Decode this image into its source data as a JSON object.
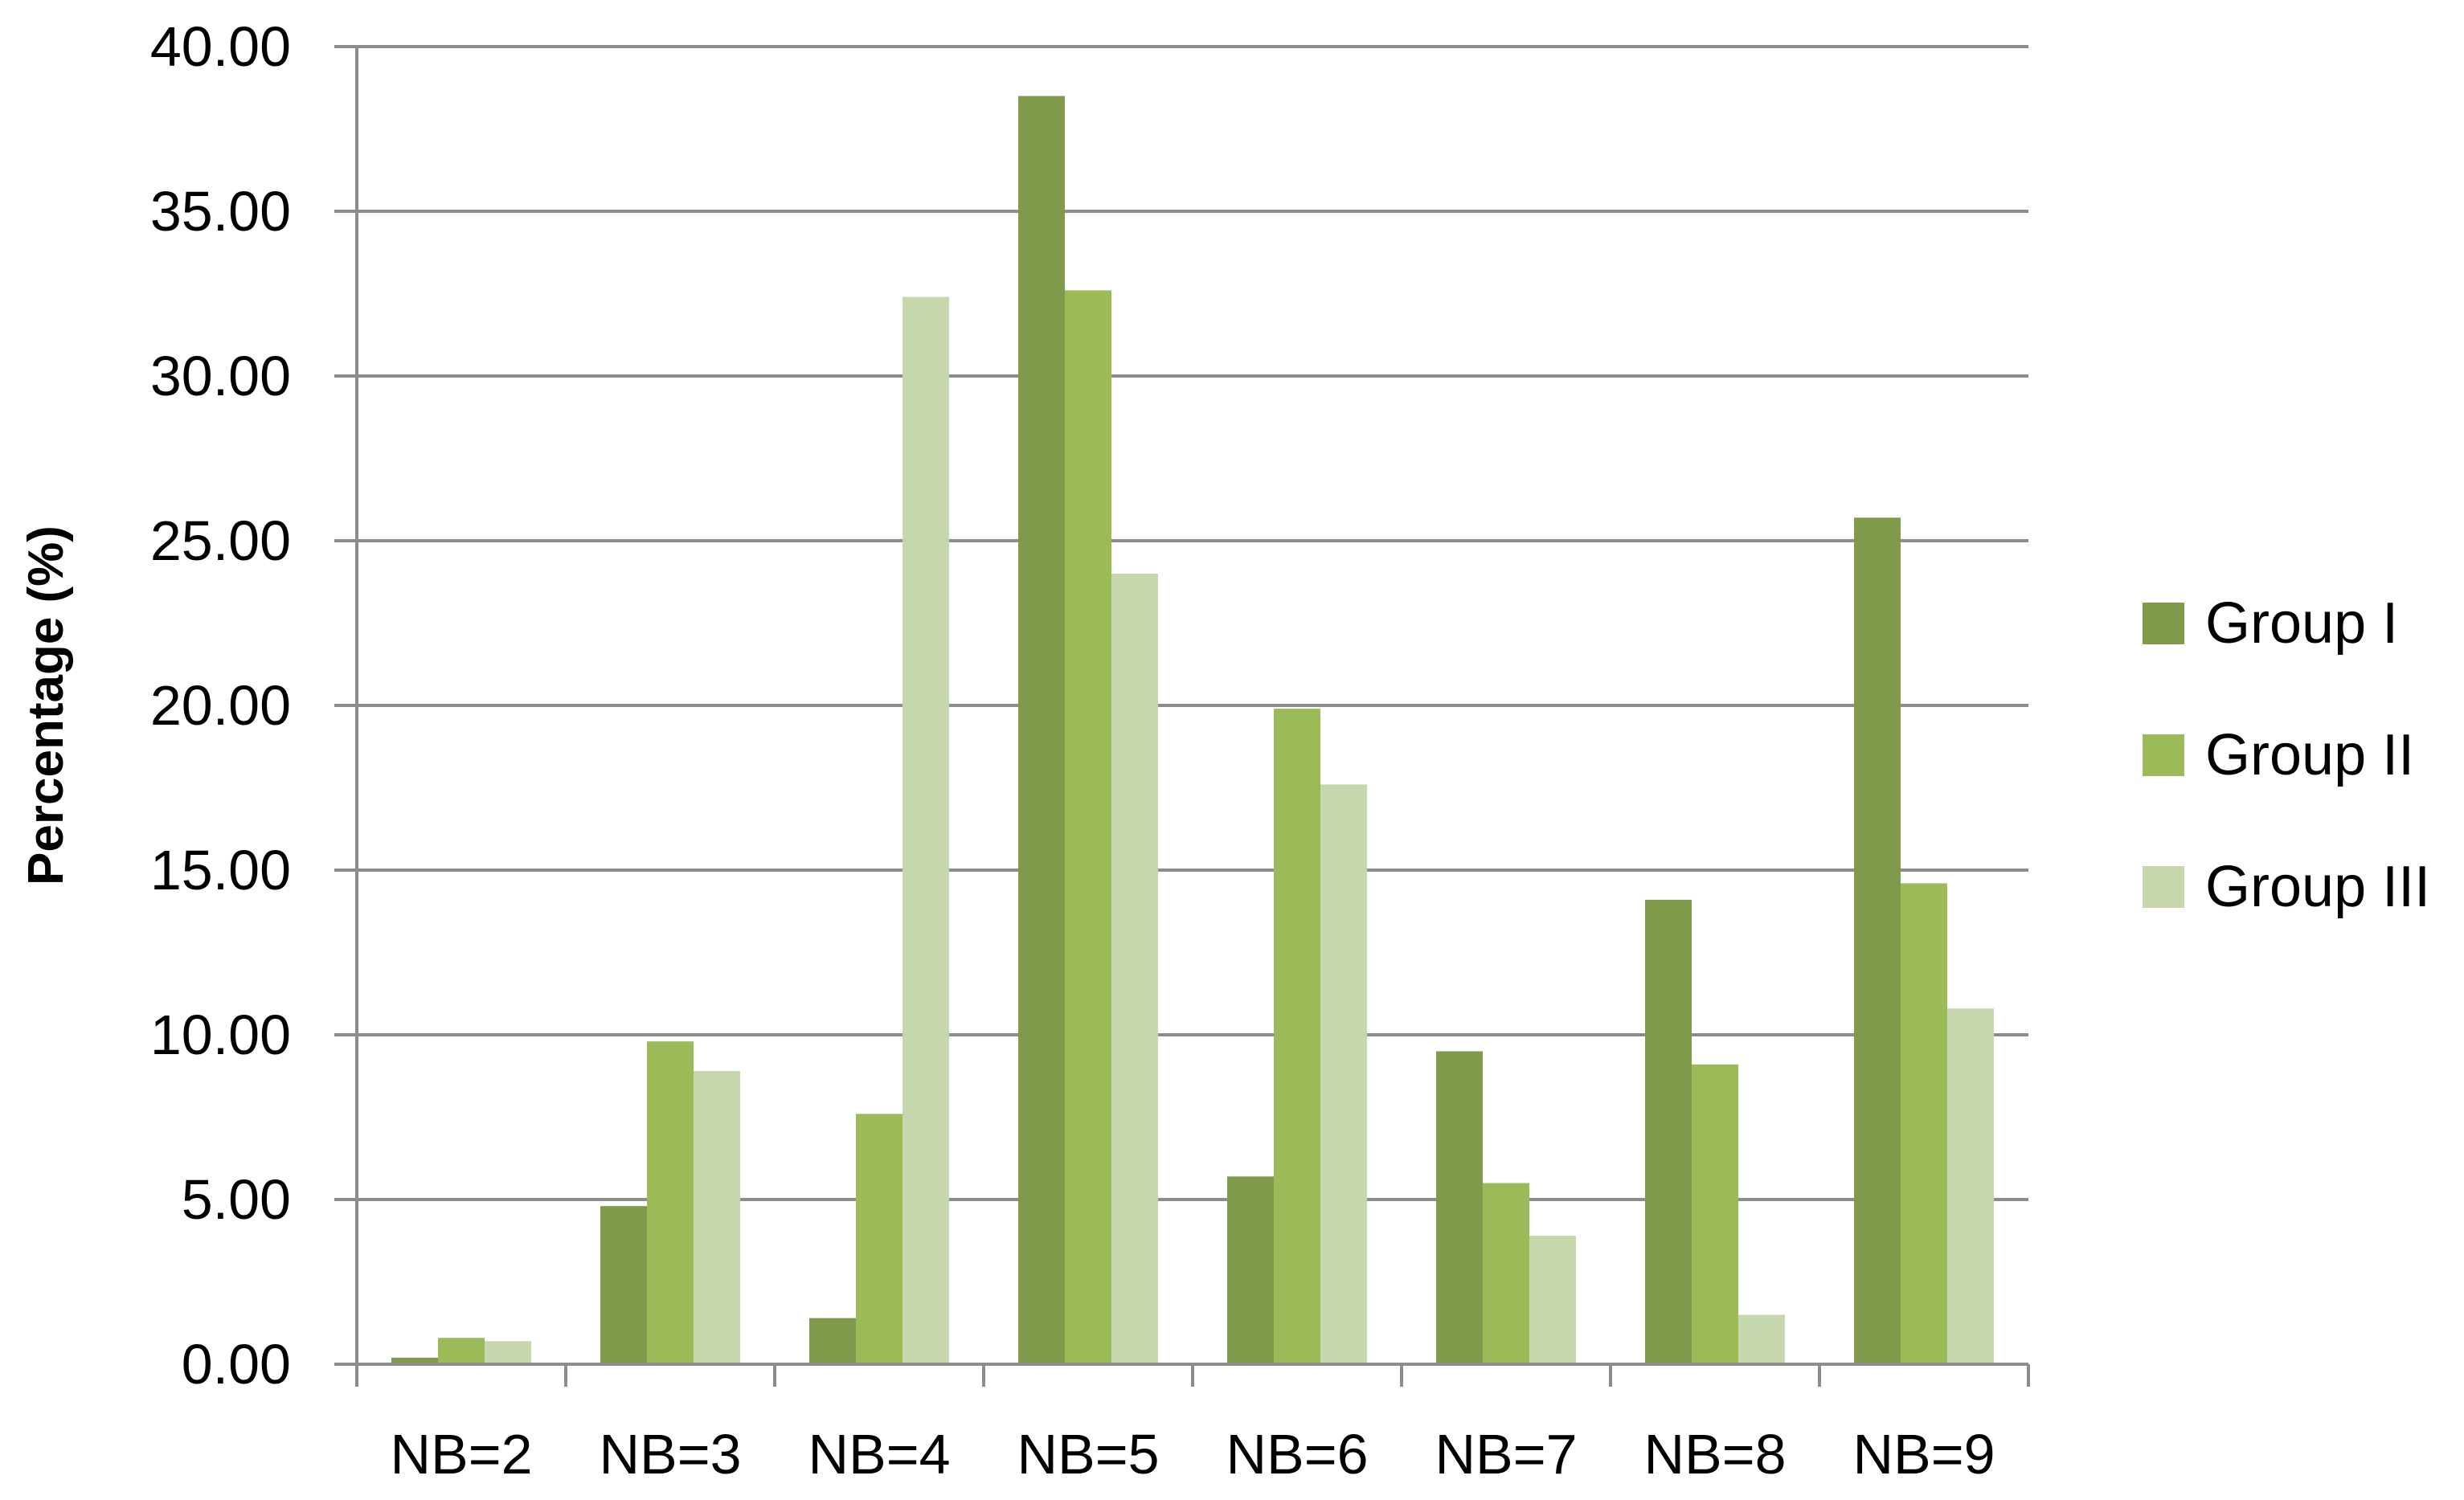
{
  "chart_data": {
    "type": "bar",
    "title": "",
    "xlabel": "",
    "ylabel": "Percentage (%)",
    "ylim": [
      0,
      40
    ],
    "yticks": [
      "0.00",
      "5.00",
      "10.00",
      "15.00",
      "20.00",
      "25.00",
      "30.00",
      "35.00",
      "40.00"
    ],
    "grid": true,
    "legend_position": "right",
    "categories": [
      "NB=2",
      "NB=3",
      "NB=4",
      "NB=5",
      "NB=6",
      "NB=7",
      "NB=8",
      "NB=9"
    ],
    "series": [
      {
        "name": "Group I",
        "color": "#7e9a4a",
        "values": [
          0.2,
          4.8,
          1.4,
          38.5,
          5.7,
          9.5,
          14.1,
          25.7
        ]
      },
      {
        "name": "Group II",
        "color": "#9bbb59",
        "values": [
          0.8,
          9.8,
          7.6,
          32.6,
          19.9,
          5.5,
          9.1,
          14.6
        ]
      },
      {
        "name": "Group III",
        "color": "#c7d7ad",
        "values": [
          0.7,
          8.9,
          32.4,
          24.0,
          17.6,
          3.9,
          1.5,
          10.8
        ]
      }
    ]
  }
}
